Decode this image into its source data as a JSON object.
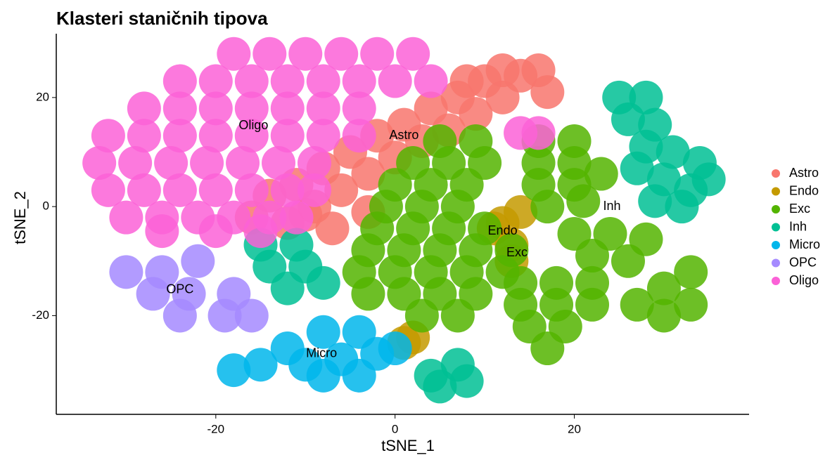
{
  "chart_data": {
    "type": "scatter",
    "title": "Klasteri staničnih tipova",
    "x_label": "tSNE_1",
    "y_label": "tSNE_2",
    "xlim": [
      -37.8,
      39.5
    ],
    "ylim": [
      -38.1,
      31.7
    ],
    "xticks": [
      -20,
      0,
      20
    ],
    "yticks": [
      -20,
      0,
      20
    ],
    "grid": false,
    "legend_position": "right",
    "series": [
      {
        "name": "Astro",
        "color": "#F8766D",
        "x": [
          -16,
          -14,
          -12,
          -11,
          -9,
          -8,
          -6,
          -5,
          -3,
          -2,
          0,
          1,
          3,
          4,
          6,
          7,
          9,
          10,
          12,
          14,
          16,
          17,
          8,
          12,
          -7,
          -3,
          -10
        ],
        "y": [
          -2,
          2,
          -3,
          4,
          0,
          7,
          3,
          10,
          6,
          13,
          9,
          15,
          12,
          18,
          14,
          20,
          17,
          23,
          20,
          24,
          25,
          21,
          23,
          25,
          -4,
          -1,
          -1.5
        ]
      },
      {
        "name": "Endo",
        "color": "#C49A00",
        "x": [
          12,
          14,
          11,
          13,
          13,
          2,
          1
        ],
        "y": [
          -3,
          -1,
          -4,
          -7,
          -10,
          -24,
          -25
        ]
      },
      {
        "name": "Exc",
        "color": "#53B400",
        "x": [
          5,
          9,
          2,
          6,
          10,
          0,
          4,
          8,
          -1,
          3,
          7,
          -2,
          2,
          6,
          10,
          -3,
          1,
          5,
          9,
          13,
          -4,
          0,
          4,
          8,
          12,
          -3,
          1,
          5,
          9,
          3,
          7,
          16,
          20,
          16,
          20,
          23,
          16,
          20,
          17,
          21,
          14,
          18,
          22,
          14,
          18,
          22,
          15,
          19,
          17,
          20,
          24,
          28,
          22,
          26,
          27,
          30,
          33,
          30,
          33
        ],
        "y": [
          12,
          12,
          8,
          8,
          8,
          4,
          4,
          4,
          0,
          0,
          0,
          -4,
          -4,
          -4,
          -4,
          -8,
          -8,
          -8,
          -8,
          -8,
          -12,
          -12,
          -12,
          -12,
          -12,
          -16,
          -16,
          -16,
          -16,
          -20,
          -20,
          12,
          12,
          8,
          8,
          6,
          4,
          4,
          0,
          1,
          -14,
          -14,
          -14,
          -18,
          -18,
          -18,
          -22,
          -22,
          -26,
          -5,
          -5,
          -6,
          -9,
          -10,
          -18,
          -15,
          -12,
          -20,
          -18
        ]
      },
      {
        "name": "Inh",
        "color": "#00C094",
        "x": [
          25,
          28,
          26,
          29,
          28,
          31,
          34,
          27,
          30,
          33,
          35,
          29,
          32,
          -15,
          -11,
          -14,
          -10,
          -8,
          -12,
          4,
          7,
          8,
          5
        ],
        "y": [
          20,
          20,
          16,
          15,
          11,
          10,
          8,
          7,
          5,
          3,
          5,
          1,
          0,
          -7,
          -7,
          -11,
          -11,
          -14,
          -15,
          -31,
          -29,
          -32,
          -33
        ]
      },
      {
        "name": "Micro",
        "color": "#00B6EB",
        "x": [
          -12,
          -8,
          -4,
          -10,
          -6,
          -2,
          -8,
          -4,
          -15,
          -18,
          0
        ],
        "y": [
          -26,
          -23,
          -23,
          -29,
          -28,
          -27,
          -31,
          -31,
          -29,
          -30,
          -26
        ]
      },
      {
        "name": "OPC",
        "color": "#A58AFF",
        "x": [
          -30,
          -26,
          -27,
          -23,
          -22,
          -19,
          -18,
          -24,
          -16
        ],
        "y": [
          -12,
          -12,
          -16,
          -16,
          -10,
          -20,
          -16,
          -20,
          -20
        ]
      },
      {
        "name": "Oligo",
        "color": "#FB61D7",
        "x": [
          -18,
          -14,
          -10,
          -6,
          -2,
          2,
          -24,
          -20,
          -16,
          -12,
          -8,
          -4,
          0,
          4,
          -28,
          -24,
          -20,
          -16,
          -12,
          -8,
          -4,
          -32,
          -28,
          -24,
          -20,
          -16,
          -12,
          -8,
          -4,
          -33,
          -29,
          -25,
          -21,
          -17,
          -13,
          -9,
          -32,
          -28,
          -24,
          -20,
          -16,
          -12,
          -9,
          -30,
          -26,
          -22,
          -18,
          -14,
          -11,
          -26,
          -20,
          -15,
          14,
          16
        ],
        "y": [
          28,
          28,
          28,
          28,
          28,
          28,
          23,
          23,
          23,
          23,
          23,
          23,
          23,
          23,
          18,
          18,
          18,
          18,
          18,
          18,
          18,
          13,
          13,
          13,
          13,
          13,
          13,
          13,
          13,
          8,
          8,
          8,
          8,
          8,
          8,
          8,
          3,
          3,
          3,
          3,
          3,
          3,
          3,
          -2,
          -2,
          -2,
          -2,
          -2,
          -2,
          -4.5,
          -4.5,
          -4.5,
          13.5,
          13.5
        ]
      }
    ],
    "annotations": [
      {
        "text": "Oligo",
        "x": -15.8,
        "y": 14.8
      },
      {
        "text": "Astro",
        "x": 1,
        "y": 13
      },
      {
        "text": "Endo",
        "x": 12,
        "y": -4.5
      },
      {
        "text": "Exc",
        "x": 13.6,
        "y": -8.5
      },
      {
        "text": "Inh",
        "x": 24.2,
        "y": 0
      },
      {
        "text": "OPC",
        "x": -24,
        "y": -15.3
      },
      {
        "text": "Micro",
        "x": -8.2,
        "y": -27
      }
    ]
  }
}
